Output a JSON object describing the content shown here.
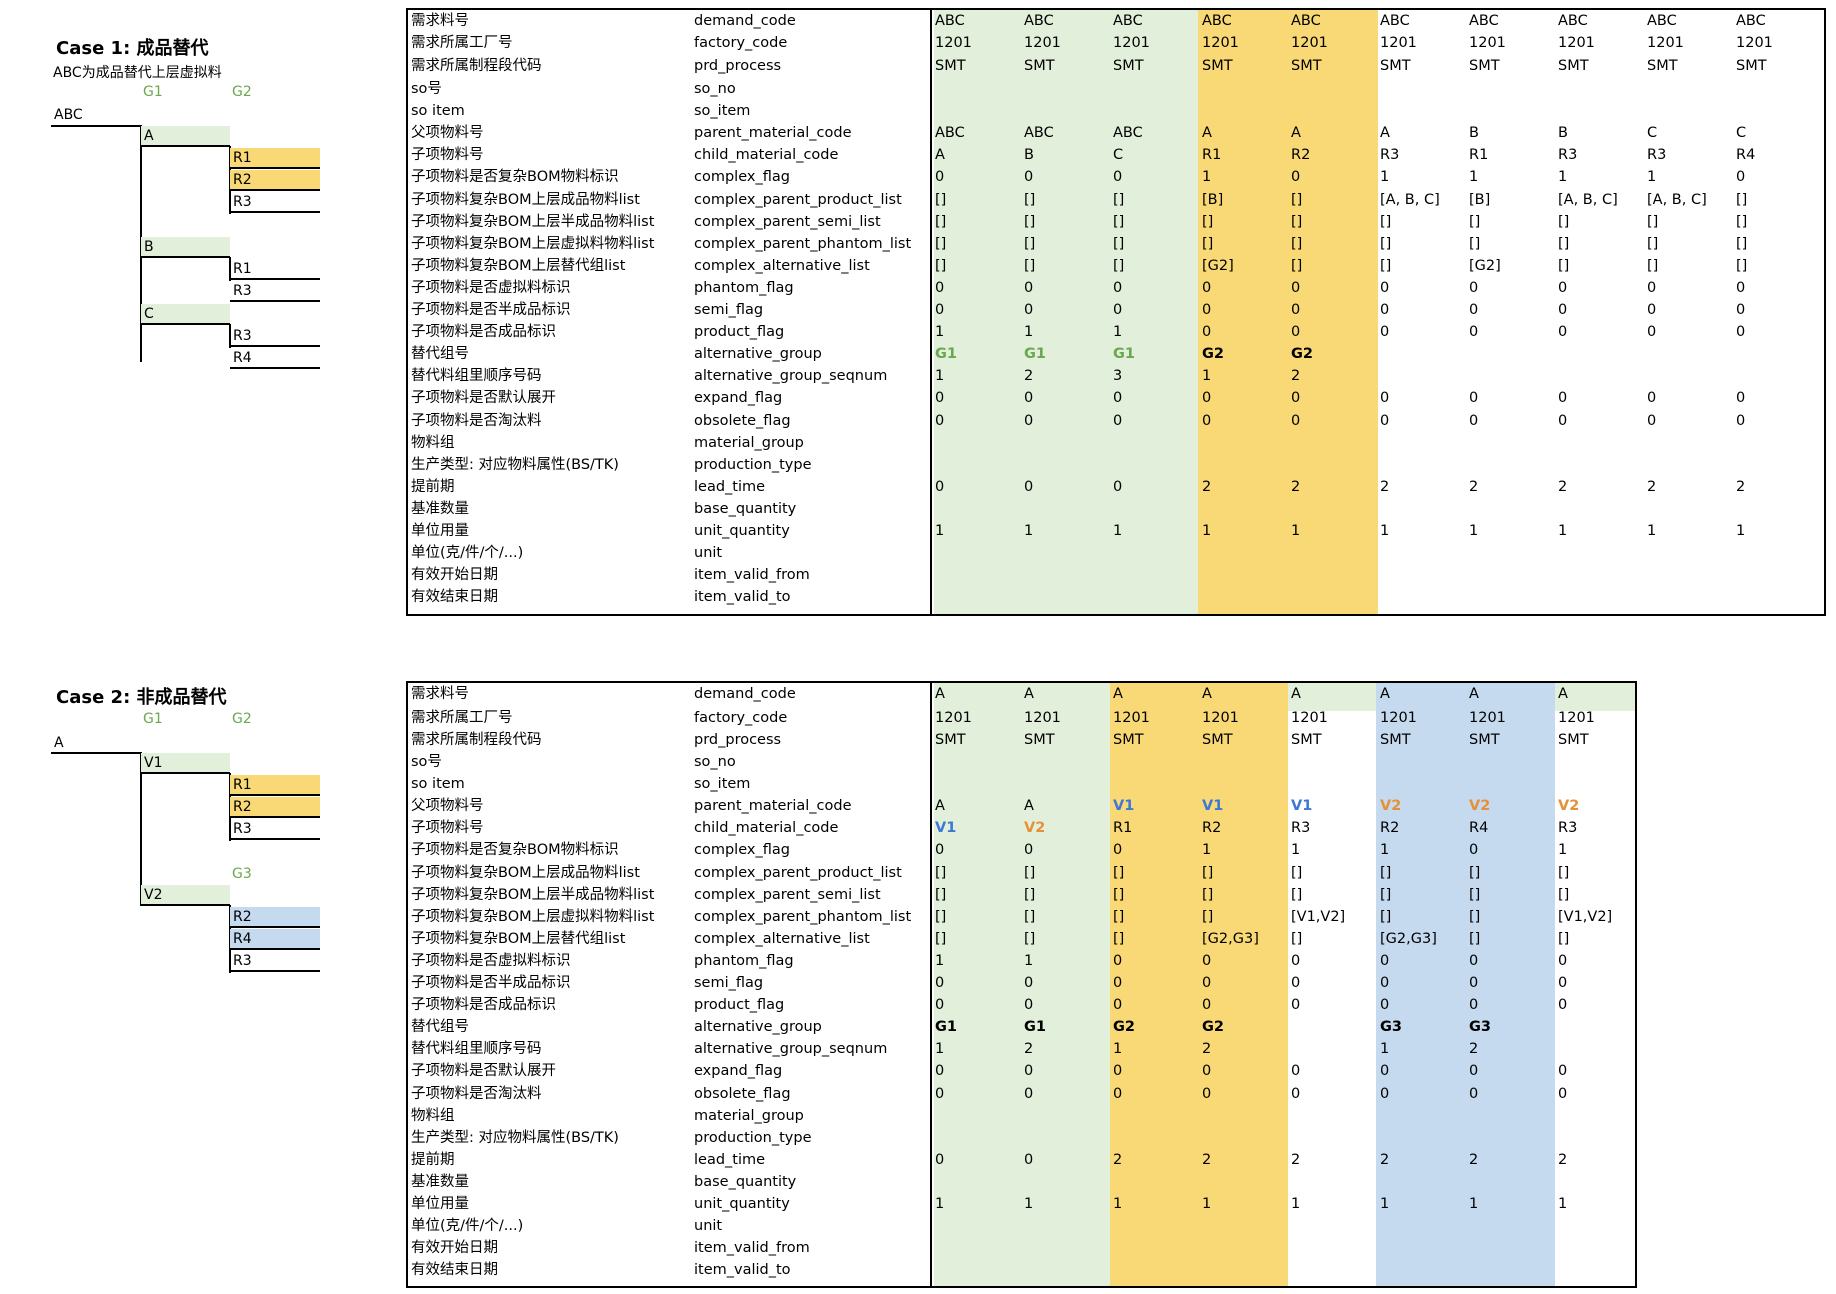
{
  "case1": {
    "title": "Case 1: 成品替代",
    "subtitle": "ABC为成品替代上层虚拟料",
    "tree": {
      "root": "ABC",
      "group_labels": [
        "G1",
        "G2"
      ],
      "nodes": [
        "A",
        "R1",
        "R2",
        "R3",
        "B",
        "R1",
        "R3",
        "C",
        "R3",
        "R4"
      ]
    },
    "table": {
      "rows": [
        {
          "cn": "需求料号",
          "en": "demand_code",
          "vals": [
            "ABC",
            "ABC",
            "ABC",
            "ABC",
            "ABC",
            "ABC",
            "ABC",
            "ABC",
            "ABC",
            "ABC"
          ]
        },
        {
          "cn": "需求所属工厂号",
          "en": "factory_code",
          "vals": [
            "1201",
            "1201",
            "1201",
            "1201",
            "1201",
            "1201",
            "1201",
            "1201",
            "1201",
            "1201"
          ]
        },
        {
          "cn": "需求所属制程段代码",
          "en": "prd_process",
          "vals": [
            "SMT",
            "SMT",
            "SMT",
            "SMT",
            "SMT",
            "SMT",
            "SMT",
            "SMT",
            "SMT",
            "SMT"
          ]
        },
        {
          "cn": "so号",
          "en": "so_no",
          "vals": [
            "",
            "",
            "",
            "",
            "",
            "",
            "",
            "",
            "",
            ""
          ]
        },
        {
          "cn": "so item",
          "en": "so_item",
          "vals": [
            "",
            "",
            "",
            "",
            "",
            "",
            "",
            "",
            "",
            ""
          ]
        },
        {
          "cn": "父项物料号",
          "en": "parent_material_code",
          "vals": [
            "ABC",
            "ABC",
            "ABC",
            "A",
            "A",
            "A",
            "B",
            "B",
            "C",
            "C"
          ]
        },
        {
          "cn": "子项物料号",
          "en": "child_material_code",
          "vals": [
            "A",
            "B",
            "C",
            "R1",
            "R2",
            "R3",
            "R1",
            "R3",
            "R3",
            "R4"
          ]
        },
        {
          "cn": "子项物料是否复杂BOM物料标识",
          "en": "complex_flag",
          "vals": [
            "0",
            "0",
            "0",
            "1",
            "0",
            "1",
            "1",
            "1",
            "1",
            "0"
          ]
        },
        {
          "cn": "子项物料复杂BOM上层成品物料list",
          "en": "complex_parent_product_list",
          "vals": [
            "[]",
            "[]",
            "[]",
            "[B]",
            "[]",
            "[A, B, C]",
            "[B]",
            "[A, B, C]",
            "[A, B, C]",
            "[]"
          ]
        },
        {
          "cn": "子项物料复杂BOM上层半成品物料list",
          "en": "complex_parent_semi_list",
          "vals": [
            "[]",
            "[]",
            "[]",
            "[]",
            "[]",
            "[]",
            "[]",
            "[]",
            "[]",
            "[]"
          ]
        },
        {
          "cn": "子项物料复杂BOM上层虚拟料物料list",
          "en": "complex_parent_phantom_list",
          "vals": [
            "[]",
            "[]",
            "[]",
            "[]",
            "[]",
            "[]",
            "[]",
            "[]",
            "[]",
            "[]"
          ]
        },
        {
          "cn": "子项物料复杂BOM上层替代组list",
          "en": "complex_alternative_list",
          "vals": [
            "[]",
            "[]",
            "[]",
            "[G2]",
            "[]",
            "[]",
            "[G2]",
            "[]",
            "[]",
            "[]"
          ]
        },
        {
          "cn": "子项物料是否虚拟料标识",
          "en": "phantom_flag",
          "vals": [
            "0",
            "0",
            "0",
            "0",
            "0",
            "0",
            "0",
            "0",
            "0",
            "0"
          ]
        },
        {
          "cn": "子项物料是否半成品标识",
          "en": "semi_flag",
          "vals": [
            "0",
            "0",
            "0",
            "0",
            "0",
            "0",
            "0",
            "0",
            "0",
            "0"
          ]
        },
        {
          "cn": "子项物料是否成品标识",
          "en": "product_flag",
          "vals": [
            "1",
            "1",
            "1",
            "0",
            "0",
            "0",
            "0",
            "0",
            "0",
            "0"
          ]
        },
        {
          "cn": "替代组号",
          "en": "alternative_group",
          "vals": [
            "G1",
            "G1",
            "G1",
            "G2",
            "G2",
            "",
            "",
            "",
            "",
            ""
          ]
        },
        {
          "cn": "替代料组里顺序号码",
          "en": "alternative_group_seqnum",
          "vals": [
            "1",
            "2",
            "3",
            "1",
            "2",
            "",
            "",
            "",
            "",
            ""
          ]
        },
        {
          "cn": "子项物料是否默认展开",
          "en": "expand_flag",
          "vals": [
            "0",
            "0",
            "0",
            "0",
            "0",
            "0",
            "0",
            "0",
            "0",
            "0"
          ]
        },
        {
          "cn": "子项物料是否淘汰料",
          "en": "obsolete_flag",
          "vals": [
            "0",
            "0",
            "0",
            "0",
            "0",
            "0",
            "0",
            "0",
            "0",
            "0"
          ]
        },
        {
          "cn": "物料组",
          "en": "material_group",
          "vals": [
            "",
            "",
            "",
            "",
            "",
            "",
            "",
            "",
            "",
            ""
          ]
        },
        {
          "cn": "生产类型: 对应物料属性(BS/TK)",
          "en": "production_type",
          "vals": [
            "",
            "",
            "",
            "",
            "",
            "",
            "",
            "",
            "",
            ""
          ]
        },
        {
          "cn": "提前期",
          "en": "lead_time",
          "vals": [
            "0",
            "0",
            "0",
            "2",
            "2",
            "2",
            "2",
            "2",
            "2",
            "2"
          ]
        },
        {
          "cn": "基准数量",
          "en": "base_quantity",
          "vals": [
            "",
            "",
            "",
            "",
            "",
            "",
            "",
            "",
            "",
            ""
          ]
        },
        {
          "cn": "单位用量",
          "en": "unit_quantity",
          "vals": [
            "1",
            "1",
            "1",
            "1",
            "1",
            "1",
            "1",
            "1",
            "1",
            "1"
          ]
        },
        {
          "cn": "单位(克/件/个/...)",
          "en": "unit",
          "vals": [
            "",
            "",
            "",
            "",
            "",
            "",
            "",
            "",
            "",
            ""
          ]
        },
        {
          "cn": "有效开始日期",
          "en": "item_valid_from",
          "vals": [
            "",
            "",
            "",
            "",
            "",
            "",
            "",
            "",
            "",
            ""
          ]
        },
        {
          "cn": "有效结束日期",
          "en": "item_valid_to",
          "vals": [
            "",
            "",
            "",
            "",
            "",
            "",
            "",
            "",
            "",
            ""
          ]
        }
      ]
    }
  },
  "case2": {
    "title": "Case 2: 非成品替代",
    "tree": {
      "root": "A",
      "group_labels": [
        "G1",
        "G2",
        "G3"
      ],
      "nodes": [
        "V1",
        "R1",
        "R2",
        "R3",
        "V2",
        "R2",
        "R4",
        "R3"
      ]
    },
    "table": {
      "rows": [
        {
          "cn": "需求料号",
          "en": "demand_code",
          "vals": [
            "A",
            "A",
            "A",
            "A",
            "A",
            "A",
            "A",
            "A"
          ]
        },
        {
          "cn": "需求所属工厂号",
          "en": "factory_code",
          "vals": [
            "1201",
            "1201",
            "1201",
            "1201",
            "1201",
            "1201",
            "1201",
            "1201"
          ]
        },
        {
          "cn": "需求所属制程段代码",
          "en": "prd_process",
          "vals": [
            "SMT",
            "SMT",
            "SMT",
            "SMT",
            "SMT",
            "SMT",
            "SMT",
            "SMT"
          ]
        },
        {
          "cn": "so号",
          "en": "so_no",
          "vals": [
            "",
            "",
            "",
            "",
            "",
            "",
            "",
            ""
          ]
        },
        {
          "cn": "so item",
          "en": "so_item",
          "vals": [
            "",
            "",
            "",
            "",
            "",
            "",
            "",
            ""
          ]
        },
        {
          "cn": "父项物料号",
          "en": "parent_material_code",
          "vals": [
            "A",
            "A",
            "V1",
            "V1",
            "V1",
            "V2",
            "V2",
            "V2"
          ]
        },
        {
          "cn": "子项物料号",
          "en": "child_material_code",
          "vals": [
            "V1",
            "V2",
            "R1",
            "R2",
            "R3",
            "R2",
            "R4",
            "R3"
          ]
        },
        {
          "cn": "子项物料是否复杂BOM物料标识",
          "en": "complex_flag",
          "vals": [
            "0",
            "0",
            "0",
            "1",
            "1",
            "1",
            "0",
            "1"
          ]
        },
        {
          "cn": "子项物料复杂BOM上层成品物料list",
          "en": "complex_parent_product_list",
          "vals": [
            "[]",
            "[]",
            "[]",
            "[]",
            "[]",
            "[]",
            "[]",
            "[]"
          ]
        },
        {
          "cn": "子项物料复杂BOM上层半成品物料list",
          "en": "complex_parent_semi_list",
          "vals": [
            "[]",
            "[]",
            "[]",
            "[]",
            "[]",
            "[]",
            "[]",
            "[]"
          ]
        },
        {
          "cn": "子项物料复杂BOM上层虚拟料物料list",
          "en": "complex_parent_phantom_list",
          "vals": [
            "[]",
            "[]",
            "[]",
            "[]",
            "[V1,V2]",
            "[]",
            "[]",
            "[V1,V2]"
          ]
        },
        {
          "cn": "子项物料复杂BOM上层替代组list",
          "en": "complex_alternative_list",
          "vals": [
            "[]",
            "[]",
            "[]",
            "[G2,G3]",
            "[]",
            "[G2,G3]",
            "[]",
            "[]"
          ]
        },
        {
          "cn": "子项物料是否虚拟料标识",
          "en": "phantom_flag",
          "vals": [
            "1",
            "1",
            "0",
            "0",
            "0",
            "0",
            "0",
            "0"
          ]
        },
        {
          "cn": "子项物料是否半成品标识",
          "en": "semi_flag",
          "vals": [
            "0",
            "0",
            "0",
            "0",
            "0",
            "0",
            "0",
            "0"
          ]
        },
        {
          "cn": "子项物料是否成品标识",
          "en": "product_flag",
          "vals": [
            "0",
            "0",
            "0",
            "0",
            "0",
            "0",
            "0",
            "0"
          ]
        },
        {
          "cn": "替代组号",
          "en": "alternative_group",
          "vals": [
            "G1",
            "G1",
            "G2",
            "G2",
            "",
            "G3",
            "G3",
            ""
          ]
        },
        {
          "cn": "替代料组里顺序号码",
          "en": "alternative_group_seqnum",
          "vals": [
            "1",
            "2",
            "1",
            "2",
            "",
            "1",
            "2",
            ""
          ]
        },
        {
          "cn": "子项物料是否默认展开",
          "en": "expand_flag",
          "vals": [
            "0",
            "0",
            "0",
            "0",
            "0",
            "0",
            "0",
            "0"
          ]
        },
        {
          "cn": "子项物料是否淘汰料",
          "en": "obsolete_flag",
          "vals": [
            "0",
            "0",
            "0",
            "0",
            "0",
            "0",
            "0",
            "0"
          ]
        },
        {
          "cn": "物料组",
          "en": "material_group",
          "vals": [
            "",
            "",
            "",
            "",
            "",
            "",
            "",
            ""
          ]
        },
        {
          "cn": "生产类型: 对应物料属性(BS/TK)",
          "en": "production_type",
          "vals": [
            "",
            "",
            "",
            "",
            "",
            "",
            "",
            ""
          ]
        },
        {
          "cn": "提前期",
          "en": "lead_time",
          "vals": [
            "0",
            "0",
            "2",
            "2",
            "2",
            "2",
            "2",
            "2"
          ]
        },
        {
          "cn": "基准数量",
          "en": "base_quantity",
          "vals": [
            "",
            "",
            "",
            "",
            "",
            "",
            "",
            ""
          ]
        },
        {
          "cn": "单位用量",
          "en": "unit_quantity",
          "vals": [
            "1",
            "1",
            "1",
            "1",
            "1",
            "1",
            "1",
            "1"
          ]
        },
        {
          "cn": "单位(克/件/个/...)",
          "en": "unit",
          "vals": [
            "",
            "",
            "",
            "",
            "",
            "",
            "",
            ""
          ]
        },
        {
          "cn": "有效开始日期",
          "en": "item_valid_from",
          "vals": [
            "",
            "",
            "",
            "",
            "",
            "",
            "",
            ""
          ]
        },
        {
          "cn": "有效结束日期",
          "en": "item_valid_to",
          "vals": [
            "",
            "",
            "",
            "",
            "",
            "",
            "",
            ""
          ]
        }
      ]
    }
  },
  "colors": {
    "green_fill": "#e2efda",
    "yellow_fill": "#f9d876",
    "blue_fill": "#c5d9ef",
    "group_label_green": "#6aa84f",
    "text_blue": "#3d78d8",
    "text_orange": "#e69138"
  }
}
